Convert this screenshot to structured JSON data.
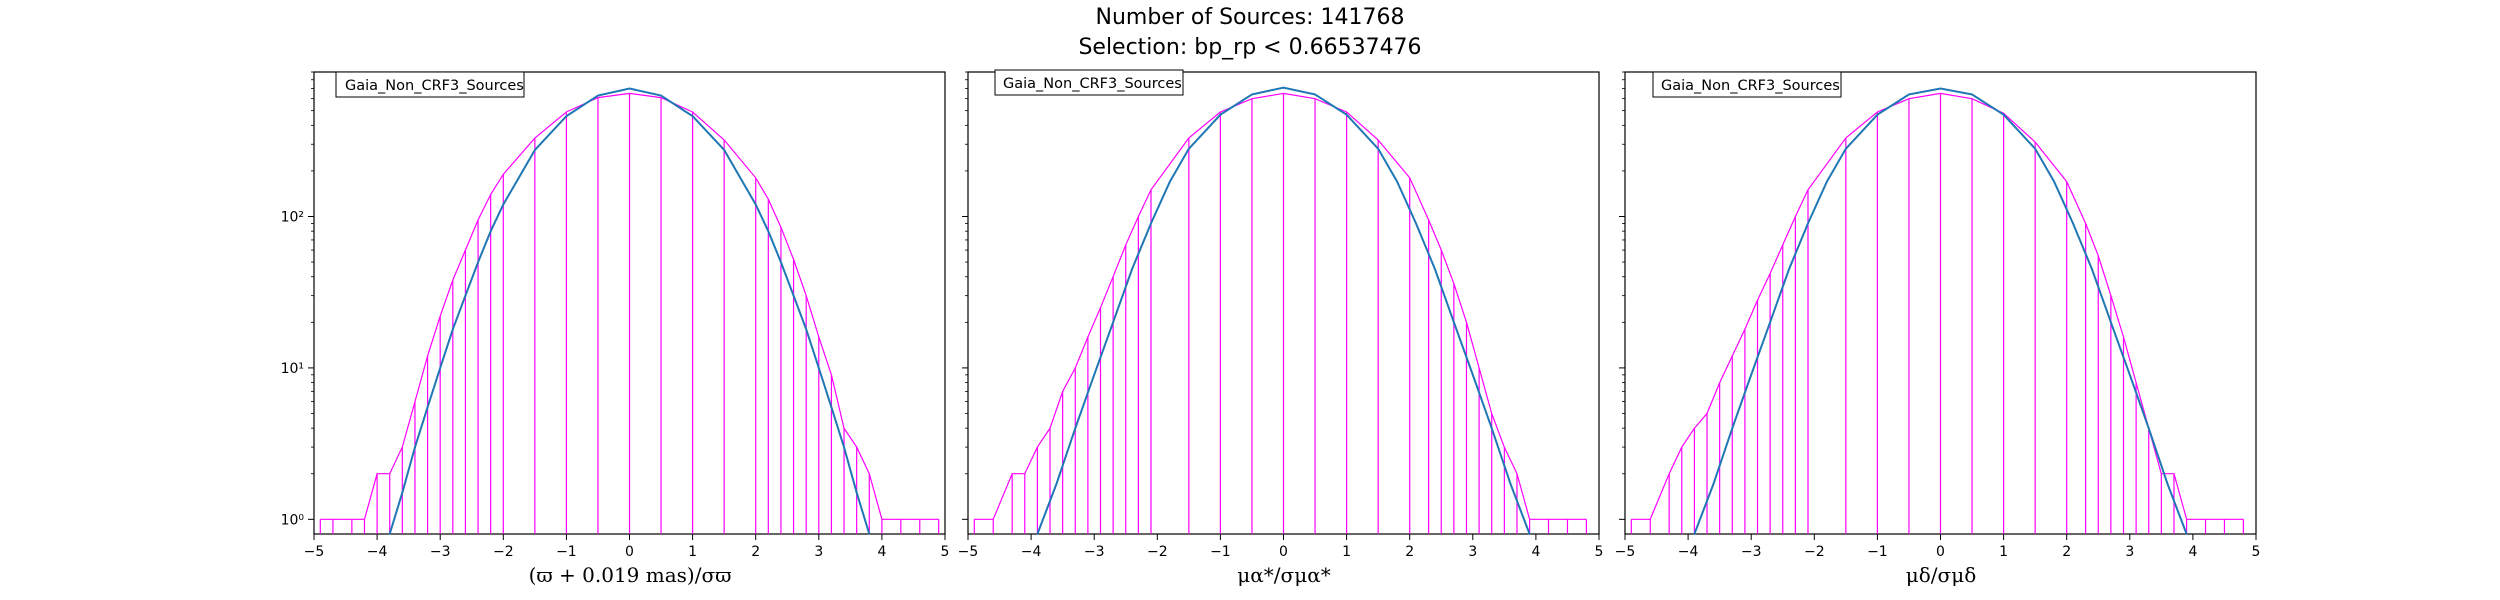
{
  "figure": {
    "title_line1": "Number of Sources: 141768",
    "title_line2": "Selection: bp_rp < 0.66537476"
  },
  "colors": {
    "histogram": "#ff00ff",
    "fit": "#1f77b4"
  },
  "chart_data": [
    {
      "type": "line",
      "legend": "Gaia_Non_CRF3_Sources",
      "legend_position": "top-left",
      "xlabel": "(ϖ + 0.019 mas)/σϖ",
      "xlim": [
        -5,
        5
      ],
      "ylim": [
        0.8,
        900
      ],
      "yscale": "log",
      "xticks": [
        "−5",
        "−4",
        "−3",
        "−2",
        "−1",
        "0",
        "1",
        "2",
        "3",
        "4",
        "5"
      ],
      "yticks": [
        {
          "value": 1,
          "label": "10⁰"
        },
        {
          "value": 10,
          "label": "10¹"
        },
        {
          "value": 100,
          "label": "10²"
        }
      ],
      "series": [
        {
          "kind": "histogram",
          "x": [
            -4.9,
            -4.7,
            -4.4,
            -4.2,
            -4.0,
            -3.8,
            -3.6,
            -3.4,
            -3.2,
            -3.0,
            -2.8,
            -2.6,
            -2.4,
            -2.2,
            -2.0,
            -1.5,
            -1.0,
            -0.5,
            0.0,
            0.5,
            1.0,
            1.5,
            2.0,
            2.2,
            2.4,
            2.6,
            2.8,
            3.0,
            3.2,
            3.4,
            3.6,
            3.8,
            4.0,
            4.3,
            4.6,
            4.9
          ],
          "y": [
            1,
            1,
            1,
            1,
            2,
            2,
            3,
            6,
            12,
            22,
            38,
            60,
            95,
            140,
            190,
            330,
            490,
            610,
            650,
            610,
            490,
            320,
            180,
            130,
            85,
            52,
            30,
            16,
            9,
            4,
            3,
            2,
            1,
            1,
            1,
            1
          ]
        },
        {
          "kind": "fit",
          "x": [
            -3.8,
            -3.6,
            -3.4,
            -3.2,
            -3.0,
            -2.8,
            -2.6,
            -2.4,
            -2.2,
            -2.0,
            -1.5,
            -1.0,
            -0.5,
            0.0,
            0.5,
            1.0,
            1.5,
            2.0,
            2.2,
            2.4,
            2.6,
            2.8,
            3.0,
            3.2,
            3.4,
            3.6,
            3.8
          ],
          "y": [
            0.8,
            1.5,
            3,
            5.5,
            10,
            18,
            30,
            50,
            80,
            120,
            275,
            460,
            630,
            700,
            630,
            460,
            275,
            120,
            80,
            50,
            30,
            18,
            10,
            5.5,
            3,
            1.5,
            0.8
          ]
        }
      ]
    },
    {
      "type": "line",
      "legend": "Gaia_Non_CRF3_Sources",
      "legend_position": "top-left",
      "xlabel": "μα*/σμα*",
      "xlim": [
        -5,
        5
      ],
      "ylim": [
        0.8,
        900
      ],
      "yscale": "log",
      "xticks": [
        "−5",
        "−4",
        "−3",
        "−2",
        "−1",
        "0",
        "1",
        "2",
        "3",
        "4",
        "5"
      ],
      "yticks": [
        {
          "value": 1,
          "label": ""
        },
        {
          "value": 10,
          "label": ""
        },
        {
          "value": 100,
          "label": ""
        }
      ],
      "series": [
        {
          "kind": "histogram",
          "x": [
            -4.9,
            -4.6,
            -4.3,
            -4.1,
            -3.9,
            -3.7,
            -3.5,
            -3.3,
            -3.1,
            -2.9,
            -2.7,
            -2.5,
            -2.3,
            -2.1,
            -1.5,
            -1.0,
            -0.5,
            0.0,
            0.5,
            1.0,
            1.5,
            2.0,
            2.3,
            2.5,
            2.7,
            2.9,
            3.1,
            3.3,
            3.5,
            3.7,
            3.9,
            4.2,
            4.5,
            4.8
          ],
          "y": [
            1,
            1,
            2,
            2,
            3,
            4,
            7,
            10,
            16,
            25,
            40,
            65,
            100,
            150,
            330,
            490,
            600,
            650,
            600,
            490,
            320,
            180,
            95,
            60,
            36,
            20,
            10,
            5,
            3,
            2,
            1,
            1,
            1,
            1
          ]
        },
        {
          "kind": "fit",
          "x": [
            -3.9,
            -3.6,
            -3.3,
            -3.0,
            -2.7,
            -2.4,
            -2.1,
            -1.8,
            -1.5,
            -1.0,
            -0.5,
            0.0,
            0.5,
            1.0,
            1.5,
            1.8,
            2.1,
            2.4,
            2.7,
            3.0,
            3.3,
            3.6,
            3.9
          ],
          "y": [
            0.8,
            1.7,
            4,
            9,
            20,
            45,
            90,
            170,
            280,
            470,
            640,
            710,
            640,
            470,
            280,
            170,
            90,
            45,
            20,
            9,
            4,
            1.7,
            0.8
          ]
        }
      ]
    },
    {
      "type": "line",
      "legend": "Gaia_Non_CRF3_Sources",
      "legend_position": "top-left",
      "xlabel": "μδ/σμδ",
      "xlim": [
        -5,
        5
      ],
      "ylim": [
        0.8,
        900
      ],
      "yscale": "log",
      "xticks": [
        "−5",
        "−4",
        "−3",
        "−2",
        "−1",
        "0",
        "1",
        "2",
        "3",
        "4",
        "5"
      ],
      "yticks": [
        {
          "value": 1,
          "label": ""
        },
        {
          "value": 10,
          "label": ""
        },
        {
          "value": 100,
          "label": ""
        }
      ],
      "series": [
        {
          "kind": "histogram",
          "x": [
            -4.9,
            -4.6,
            -4.3,
            -4.1,
            -3.9,
            -3.7,
            -3.5,
            -3.3,
            -3.1,
            -2.9,
            -2.7,
            -2.5,
            -2.3,
            -2.1,
            -1.5,
            -1.0,
            -0.5,
            0.0,
            0.5,
            1.0,
            1.5,
            2.0,
            2.3,
            2.5,
            2.7,
            2.9,
            3.1,
            3.3,
            3.5,
            3.7,
            3.9,
            4.2,
            4.5,
            4.8
          ],
          "y": [
            1,
            1,
            2,
            3,
            4,
            5,
            8,
            12,
            18,
            28,
            42,
            65,
            100,
            150,
            330,
            490,
            600,
            650,
            600,
            480,
            310,
            170,
            90,
            55,
            30,
            16,
            8,
            4,
            2,
            2,
            1,
            1,
            1,
            1
          ]
        },
        {
          "kind": "fit",
          "x": [
            -3.9,
            -3.6,
            -3.3,
            -3.0,
            -2.7,
            -2.4,
            -2.1,
            -1.8,
            -1.5,
            -1.0,
            -0.5,
            0.0,
            0.5,
            1.0,
            1.5,
            1.8,
            2.1,
            2.4,
            2.7,
            3.0,
            3.3,
            3.6,
            3.9
          ],
          "y": [
            0.8,
            1.7,
            4,
            9,
            20,
            45,
            90,
            170,
            280,
            470,
            640,
            700,
            640,
            470,
            280,
            170,
            90,
            45,
            20,
            9,
            4,
            1.7,
            0.8
          ]
        }
      ]
    }
  ]
}
